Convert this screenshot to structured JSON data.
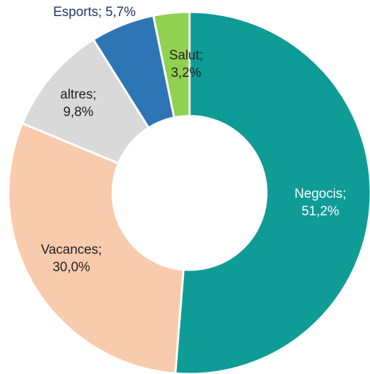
{
  "chart_data": {
    "type": "donut",
    "categories": [
      "Negocis",
      "Vacances",
      "altres",
      "Esports",
      "Salut"
    ],
    "values": [
      51.2,
      30.0,
      9.8,
      5.7,
      3.2
    ],
    "value_labels": [
      "51,2%",
      "30,0%",
      "9,8%",
      "5,7%",
      "3,2%"
    ],
    "label_separator": ";",
    "colors": [
      "#0f9b96",
      "#f8cbad",
      "#d9d9d9",
      "#2e75b6",
      "#92d050"
    ]
  }
}
